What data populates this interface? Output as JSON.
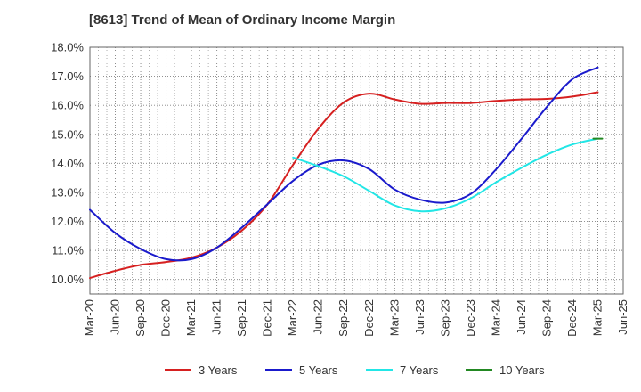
{
  "chart_data": {
    "type": "line",
    "title": "[8613]  Trend of Mean of Ordinary Income Margin",
    "xlabel": "",
    "ylabel": "",
    "ylim": [
      9.5,
      18.0
    ],
    "y_ticks": [
      "10.0%",
      "11.0%",
      "12.0%",
      "13.0%",
      "14.0%",
      "15.0%",
      "16.0%",
      "17.0%",
      "18.0%"
    ],
    "y_tick_values": [
      10,
      11,
      12,
      13,
      14,
      15,
      16,
      17,
      18
    ],
    "categories": [
      "Mar-20",
      "Jun-20",
      "Sep-20",
      "Dec-20",
      "Mar-21",
      "Jun-21",
      "Sep-21",
      "Dec-21",
      "Mar-22",
      "Jun-22",
      "Sep-22",
      "Dec-22",
      "Mar-23",
      "Jun-23",
      "Sep-23",
      "Dec-23",
      "Mar-24",
      "Jun-24",
      "Sep-24",
      "Dec-24",
      "Mar-25",
      "Jun-25"
    ],
    "grid": true,
    "legend_position": "bottom",
    "series": [
      {
        "name": "3 Years",
        "color": "#d62020",
        "values": [
          10.05,
          10.3,
          10.5,
          10.6,
          10.75,
          11.1,
          11.7,
          12.6,
          13.95,
          15.2,
          16.1,
          16.4,
          16.2,
          16.05,
          16.08,
          16.08,
          16.15,
          16.2,
          16.22,
          16.3,
          16.45,
          null
        ]
      },
      {
        "name": "5 Years",
        "color": "#1a1acc",
        "values": [
          12.4,
          11.6,
          11.05,
          10.7,
          10.7,
          11.1,
          11.8,
          12.6,
          13.4,
          13.95,
          14.1,
          13.8,
          13.1,
          12.75,
          12.65,
          12.95,
          13.8,
          14.85,
          15.95,
          16.9,
          17.3,
          null
        ]
      },
      {
        "name": "7 Years",
        "color": "#22e6e6",
        "values": [
          null,
          null,
          null,
          null,
          null,
          null,
          null,
          null,
          14.2,
          13.9,
          13.55,
          13.05,
          12.55,
          12.35,
          12.45,
          12.8,
          13.35,
          13.85,
          14.3,
          14.65,
          14.85,
          null
        ]
      },
      {
        "name": "10 Years",
        "color": "#228822",
        "values": [
          null,
          null,
          null,
          null,
          null,
          null,
          null,
          null,
          null,
          null,
          null,
          null,
          null,
          null,
          null,
          null,
          null,
          null,
          null,
          null,
          14.85,
          null
        ]
      }
    ]
  }
}
